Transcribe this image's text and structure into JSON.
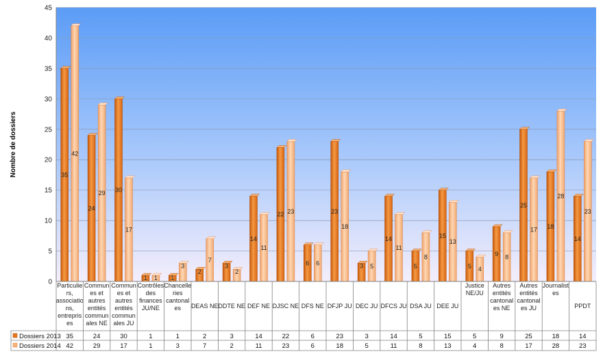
{
  "chart_data": {
    "type": "bar",
    "title": "",
    "xlabel": "",
    "ylabel": "Nombre de dossiers",
    "ylim": [
      0,
      45
    ],
    "ytick_step": 5,
    "grid": true,
    "legend": "data-table-left",
    "categories": [
      "Particuliers, associations, entreprises",
      "Communes et autres entités communales NE",
      "Communes et autres entités communales JU",
      "Contrôles des finances JU/NE",
      "Chancelleries cantonales",
      "DEAS NE",
      "DDTE NE",
      "DEF NE",
      "DJSC NE",
      "DFS NE",
      "DFJP JU",
      "DEC JU",
      "DFCS JU",
      "DSA JU",
      "DEE JU",
      "Justice NE/JU",
      "Autres entités cantonales NE",
      "Autres entités cantonales JU",
      "Journalistes",
      "PPDT"
    ],
    "category_lines": [
      [
        "Particulie",
        "rs,",
        "associatio",
        "ns,",
        "entrepris",
        "es"
      ],
      [
        "Commun",
        "es et",
        "autres",
        "entités",
        "commun",
        "ales NE"
      ],
      [
        "Commun",
        "es et",
        "autres",
        "entités",
        "commun",
        "ales JU"
      ],
      [
        "Contrôles",
        "des",
        "finances",
        "JU/NE"
      ],
      [
        "Chancelle",
        "ries",
        "cantonal",
        "es"
      ],
      [
        "DEAS NE"
      ],
      [
        "DDTE NE"
      ],
      [
        "DEF NE"
      ],
      [
        "DJSC NE"
      ],
      [
        "DFS NE"
      ],
      [
        "DFJP JU"
      ],
      [
        "DEC JU"
      ],
      [
        "DFCS JU"
      ],
      [
        "DSA JU"
      ],
      [
        "DEE JU"
      ],
      [
        "Justice",
        "NE/JU"
      ],
      [
        "Autres",
        "entités",
        "cantonal",
        "es NE"
      ],
      [
        "Autres",
        "entités",
        "cantonal",
        "es JU"
      ],
      [
        "Journalist",
        "es"
      ],
      [
        "PPDT"
      ]
    ],
    "series": [
      {
        "name": "Dossiers 2013",
        "color": "#e8761a",
        "values": [
          35,
          24,
          30,
          1,
          1,
          2,
          3,
          14,
          22,
          6,
          23,
          3,
          14,
          5,
          15,
          5,
          9,
          25,
          18,
          14
        ]
      },
      {
        "name": "Dossiers 2014",
        "color": "#f7b27a",
        "values": [
          42,
          29,
          17,
          1,
          3,
          7,
          2,
          11,
          23,
          6,
          18,
          5,
          11,
          8,
          13,
          4,
          8,
          17,
          28,
          23
        ]
      }
    ]
  }
}
